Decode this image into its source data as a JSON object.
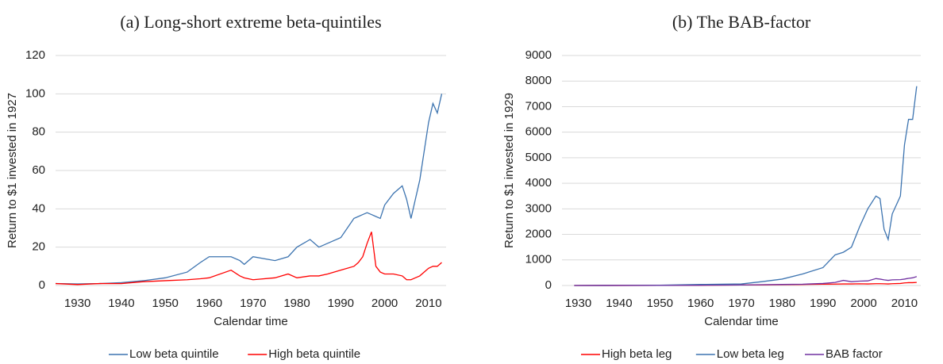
{
  "chart_data": [
    {
      "type": "line",
      "title": "(a) Long-short extreme beta-quintiles",
      "x_label": "Calendar time",
      "y_label": "Return to $1 invested in 1927",
      "x": [
        1925,
        1930,
        1935,
        1940,
        1945,
        1950,
        1955,
        1958,
        1960,
        1965,
        1967,
        1968,
        1970,
        1975,
        1978,
        1980,
        1983,
        1985,
        1987,
        1990,
        1993,
        1994,
        1995,
        1996,
        1997,
        1998,
        1999,
        2000,
        2002,
        2004,
        2005,
        2006,
        2007,
        2008,
        2010,
        2011,
        2012,
        2013
      ],
      "series": [
        {
          "name": "Low beta quintile",
          "color": "#3d74b0",
          "values": [
            1,
            0.8,
            1,
            1.5,
            2.5,
            4,
            7,
            12,
            15,
            15,
            13,
            11,
            15,
            13,
            15,
            20,
            24,
            20,
            22,
            25,
            35,
            36,
            37,
            38,
            37,
            36,
            35,
            42,
            48,
            52,
            45,
            35,
            45,
            55,
            85,
            95,
            90,
            100
          ]
        },
        {
          "name": "High beta quintile",
          "color": "#ff0000",
          "values": [
            1,
            0.5,
            1,
            1,
            2,
            2.5,
            3,
            3.5,
            4,
            8,
            5,
            4,
            3,
            4,
            6,
            4,
            5,
            5,
            6,
            8,
            10,
            12,
            15,
            22,
            28,
            10,
            7,
            6,
            6,
            5,
            3,
            3,
            4,
            5,
            9,
            10,
            10,
            12
          ]
        }
      ],
      "xlim": [
        1925,
        2014
      ],
      "xticks": [
        1930,
        1940,
        1950,
        1960,
        1970,
        1980,
        1990,
        2000,
        2010
      ],
      "ylim": [
        0,
        120
      ],
      "yticks": [
        0,
        20,
        40,
        60,
        80,
        100,
        120
      ],
      "grid": true,
      "legend": "bottom"
    },
    {
      "type": "line",
      "title": "(b) The BAB-factor",
      "x_label": "Calendar time",
      "y_label": "Return to $1 invested in 1929",
      "x": [
        1929,
        1940,
        1950,
        1960,
        1970,
        1975,
        1980,
        1985,
        1990,
        1993,
        1995,
        1997,
        1999,
        2001,
        2003,
        2004,
        2005,
        2006,
        2007,
        2009,
        2010,
        2011,
        2012,
        2013
      ],
      "series": [
        {
          "name": "High beta leg",
          "color": "#ff0000",
          "values": [
            1,
            2,
            5,
            10,
            20,
            25,
            30,
            40,
            50,
            55,
            60,
            60,
            65,
            60,
            70,
            70,
            65,
            60,
            70,
            80,
            100,
            110,
            110,
            120
          ]
        },
        {
          "name": "Low beta leg",
          "color": "#3d74b0",
          "values": [
            1,
            3,
            10,
            40,
            60,
            150,
            250,
            450,
            700,
            1200,
            1300,
            1500,
            2300,
            3000,
            3500,
            3400,
            2200,
            1800,
            2800,
            3500,
            5500,
            6500,
            6500,
            7800
          ]
        },
        {
          "name": "BAB factor",
          "color": "#7030a0",
          "values": [
            1,
            2,
            5,
            10,
            20,
            30,
            40,
            50,
            80,
            120,
            200,
            150,
            170,
            180,
            270,
            250,
            220,
            200,
            220,
            230,
            250,
            280,
            300,
            350
          ]
        }
      ],
      "xlim": [
        1926,
        2014
      ],
      "xticks": [
        1930,
        1940,
        1950,
        1960,
        1970,
        1980,
        1990,
        2000,
        2010
      ],
      "ylim": [
        0,
        9000
      ],
      "yticks": [
        0,
        1000,
        2000,
        3000,
        4000,
        5000,
        6000,
        7000,
        8000,
        9000
      ],
      "grid": true,
      "legend": "bottom"
    }
  ]
}
